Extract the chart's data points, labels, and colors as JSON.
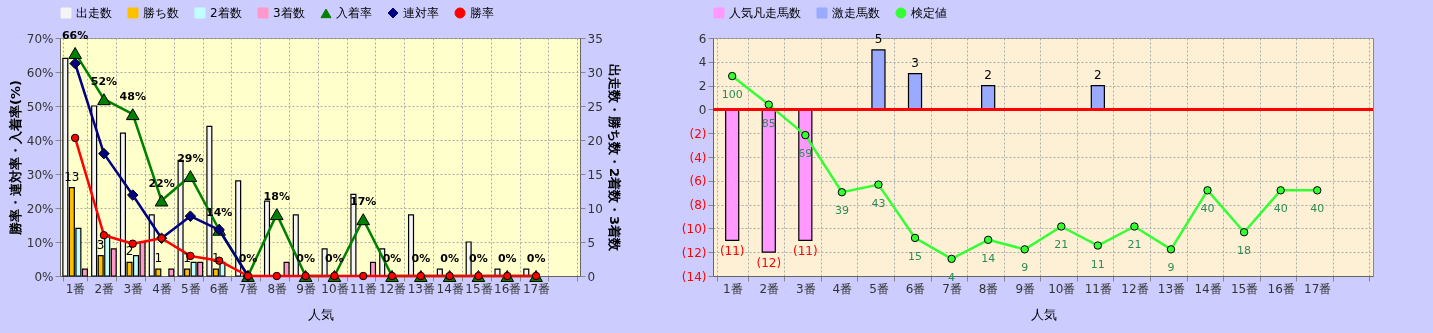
{
  "chart_data": [
    {
      "type": "bar",
      "xlabel": "人気",
      "ylabel": "勝率・連対率・入着率(%)",
      "y2label": "出走数・勝ち数・2着数・3着数",
      "categories": [
        "1番",
        "2番",
        "3番",
        "4番",
        "5番",
        "6番",
        "7番",
        "8番",
        "9番",
        "10番",
        "11番",
        "12番",
        "13番",
        "14番",
        "15番",
        "16番",
        "17番",
        null
      ],
      "ylim": [
        0,
        70
      ],
      "yticks": [
        {
          "value": 0,
          "label": "0%"
        },
        {
          "value": 10,
          "label": "10%"
        },
        {
          "value": 20,
          "label": "20%"
        },
        {
          "value": 30,
          "label": "30%"
        },
        {
          "value": 40,
          "label": "40%"
        },
        {
          "value": 50,
          "label": "50%"
        },
        {
          "value": 60,
          "label": "60%"
        },
        {
          "value": 70,
          "label": "70%"
        }
      ],
      "y2lim": [
        0,
        35
      ],
      "y2ticks": [
        0,
        5,
        10,
        15,
        20,
        25,
        30,
        35
      ],
      "grid": true,
      "legend": "top",
      "series": [
        {
          "name": "出走数",
          "color": "#f5f5f5",
          "axis": "y2",
          "values": [
            32,
            25,
            21,
            9,
            17,
            22,
            14,
            11,
            9,
            4,
            12,
            4,
            9,
            1,
            5,
            1,
            1,
            null
          ]
        },
        {
          "name": "勝ち数",
          "color": "#ffc000",
          "axis": "y2",
          "values": [
            13,
            3,
            2,
            1,
            1,
            1,
            0,
            0,
            0,
            0,
            0,
            0,
            0,
            0,
            0,
            0,
            0,
            null
          ],
          "value_labels": [
            "13",
            "3",
            "2",
            "1",
            "1",
            "1",
            null,
            null,
            null,
            null,
            null,
            null,
            null,
            null,
            null,
            null,
            null,
            null
          ]
        },
        {
          "name": "2着数",
          "color": "#c0ffff",
          "axis": "y2",
          "values": [
            7,
            6,
            3,
            0,
            2,
            2,
            0,
            0,
            0,
            0,
            0,
            0,
            0,
            0,
            0,
            0,
            0,
            null
          ]
        },
        {
          "name": "3着数",
          "color": "#ff99cc",
          "axis": "y2",
          "values": [
            1,
            4,
            5,
            1,
            2,
            0,
            0,
            2,
            0,
            0,
            2,
            0,
            0,
            0,
            0,
            0,
            0,
            null
          ]
        },
        {
          "name": "入着率",
          "type": "line",
          "color": "#008000",
          "marker": "triangle",
          "values": [
            65.6,
            52,
            47.6,
            22.2,
            29.4,
            13.6,
            0,
            18.2,
            0,
            0,
            16.7,
            0,
            0,
            0,
            0,
            0,
            0,
            null
          ],
          "value_labels": [
            "66%",
            "52%",
            "48%",
            "22%",
            "29%",
            "14%",
            "0%",
            "18%",
            "0%",
            "0%",
            "17%",
            "0%",
            "0%",
            "0%",
            "0%",
            "0%",
            "0%",
            null
          ]
        },
        {
          "name": "連対率",
          "type": "line",
          "color": "#000080",
          "marker": "diamond",
          "values": [
            62.5,
            36,
            23.8,
            11.1,
            17.6,
            13.6,
            0,
            null,
            null,
            null,
            null,
            null,
            null,
            null,
            null,
            null,
            null,
            null
          ]
        },
        {
          "name": "勝率",
          "type": "line",
          "color": "#ff0000",
          "marker": "circle",
          "values": [
            40.6,
            12,
            9.5,
            11.1,
            5.9,
            4.5,
            0,
            0,
            0,
            0,
            0,
            0,
            0,
            0,
            0,
            0,
            0,
            null
          ]
        }
      ]
    },
    {
      "type": "bar",
      "xlabel": "人気",
      "categories": [
        "1番",
        "2番",
        "3番",
        "4番",
        "5番",
        "6番",
        "7番",
        "8番",
        "9番",
        "10番",
        "11番",
        "12番",
        "13番",
        "14番",
        "15番",
        "16番",
        "17番",
        null
      ],
      "ylim": [
        -14,
        6
      ],
      "yticks": [
        6,
        4,
        2,
        0,
        {
          "value": -2,
          "label": "(2)"
        },
        {
          "value": -4,
          "label": "(4)"
        },
        {
          "value": -6,
          "label": "(6)"
        },
        {
          "value": -8,
          "label": "(8)"
        },
        {
          "value": -10,
          "label": "(10)"
        },
        {
          "value": -12,
          "label": "(12)"
        },
        {
          "value": -14,
          "label": "(14)"
        }
      ],
      "y2lim": [
        -5,
        120
      ],
      "tick_labels": "xy",
      "grid": true,
      "legend": "top",
      "ref_lines": [
        {
          "axis": "y",
          "value": 0,
          "color": "#ff0000"
        }
      ],
      "series": [
        {
          "name": "人気凡走馬数",
          "color": "#ff99ff",
          "values": [
            -11,
            -12,
            -11,
            null,
            null,
            null,
            null,
            null,
            null,
            null,
            null,
            null,
            null,
            null,
            null,
            null,
            null,
            null
          ],
          "value_labels": [
            "(11)",
            "(12)",
            "(11)",
            null,
            null,
            null,
            null,
            null,
            null,
            null,
            null,
            null,
            null,
            null,
            null,
            null,
            null,
            null
          ]
        },
        {
          "name": "激走馬数",
          "color": "#99aaff",
          "values": [
            null,
            null,
            null,
            null,
            5,
            3,
            null,
            2,
            null,
            null,
            2,
            null,
            null,
            null,
            null,
            null,
            null,
            null
          ],
          "value_labels": [
            null,
            null,
            null,
            null,
            "5",
            "3",
            null,
            "2",
            null,
            null,
            "2",
            null,
            null,
            null,
            null,
            null,
            null,
            null
          ]
        },
        {
          "name": "検定値",
          "type": "line",
          "axis": "y2",
          "color": "#33ff33",
          "marker": "circle",
          "values": [
            100,
            85,
            69,
            39,
            43,
            15,
            4,
            14,
            9,
            21,
            11,
            21,
            9,
            40,
            18,
            40,
            40,
            null
          ],
          "value_labels": [
            "100",
            "85",
            "69",
            "39",
            "43",
            "15",
            "4",
            "14",
            "9",
            "21",
            "11",
            "21",
            "9",
            "40",
            "18",
            "40",
            "40",
            null
          ]
        }
      ]
    }
  ]
}
